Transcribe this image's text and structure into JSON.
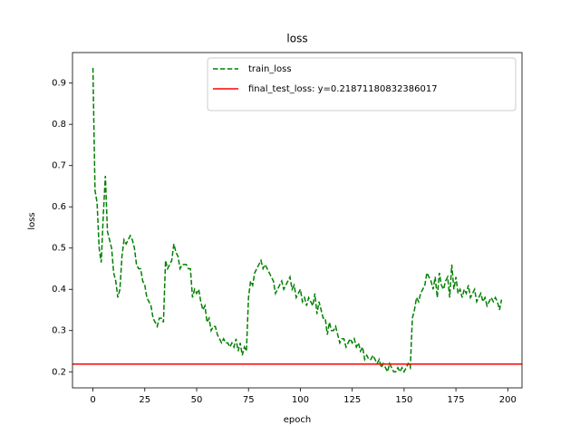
{
  "chart_data": {
    "type": "line",
    "title": "loss",
    "x_label": "epoch",
    "y_label": "loss",
    "x": [
      0,
      1,
      2,
      3,
      4,
      5,
      6,
      7,
      8,
      9,
      10,
      11,
      12,
      13,
      14,
      15,
      16,
      17,
      18,
      19,
      20,
      21,
      22,
      23,
      24,
      25,
      26,
      27,
      28,
      29,
      30,
      31,
      32,
      33,
      34,
      35,
      36,
      37,
      38,
      39,
      40,
      41,
      42,
      43,
      44,
      45,
      46,
      47,
      48,
      49,
      50,
      51,
      52,
      53,
      54,
      55,
      56,
      57,
      58,
      59,
      60,
      61,
      62,
      63,
      64,
      65,
      66,
      67,
      68,
      69,
      70,
      71,
      72,
      73,
      74,
      75,
      76,
      77,
      78,
      79,
      80,
      81,
      82,
      83,
      84,
      85,
      86,
      87,
      88,
      89,
      90,
      91,
      92,
      93,
      94,
      95,
      96,
      97,
      98,
      99,
      100,
      101,
      102,
      103,
      104,
      105,
      106,
      107,
      108,
      109,
      110,
      111,
      112,
      113,
      114,
      115,
      116,
      117,
      118,
      119,
      120,
      121,
      122,
      123,
      124,
      125,
      126,
      127,
      128,
      129,
      130,
      131,
      132,
      133,
      134,
      135,
      136,
      137,
      138,
      139,
      140,
      141,
      142,
      143,
      144,
      145,
      146,
      147,
      148,
      149,
      150,
      151,
      152,
      153,
      154,
      155,
      156,
      157,
      158,
      159,
      160,
      161,
      162,
      163,
      164,
      165,
      166,
      167,
      168,
      169,
      170,
      171,
      172,
      173,
      174,
      175,
      176,
      177,
      178,
      179,
      180,
      181,
      182,
      183,
      184,
      185,
      186,
      187,
      188,
      189,
      190,
      191,
      192,
      193,
      194,
      195,
      196,
      197
    ],
    "series": [
      {
        "name": "train_loss",
        "color": "#008000",
        "dash": true,
        "values": [
          0.937,
          0.64,
          0.61,
          0.5,
          0.465,
          0.58,
          0.675,
          0.54,
          0.52,
          0.5,
          0.44,
          0.42,
          0.38,
          0.4,
          0.48,
          0.52,
          0.51,
          0.52,
          0.53,
          0.52,
          0.5,
          0.46,
          0.45,
          0.45,
          0.42,
          0.41,
          0.38,
          0.37,
          0.36,
          0.33,
          0.32,
          0.31,
          0.33,
          0.33,
          0.32,
          0.47,
          0.45,
          0.46,
          0.47,
          0.51,
          0.49,
          0.48,
          0.45,
          0.46,
          0.46,
          0.46,
          0.45,
          0.45,
          0.38,
          0.4,
          0.39,
          0.4,
          0.37,
          0.35,
          0.36,
          0.32,
          0.33,
          0.3,
          0.31,
          0.31,
          0.29,
          0.28,
          0.27,
          0.28,
          0.27,
          0.27,
          0.26,
          0.27,
          0.26,
          0.28,
          0.25,
          0.27,
          0.24,
          0.26,
          0.25,
          0.38,
          0.42,
          0.41,
          0.44,
          0.45,
          0.46,
          0.47,
          0.45,
          0.46,
          0.45,
          0.44,
          0.43,
          0.42,
          0.39,
          0.4,
          0.41,
          0.42,
          0.4,
          0.41,
          0.42,
          0.43,
          0.4,
          0.41,
          0.38,
          0.39,
          0.4,
          0.37,
          0.38,
          0.36,
          0.38,
          0.37,
          0.36,
          0.39,
          0.34,
          0.37,
          0.35,
          0.33,
          0.33,
          0.29,
          0.32,
          0.3,
          0.3,
          0.31,
          0.29,
          0.27,
          0.28,
          0.28,
          0.26,
          0.27,
          0.28,
          0.27,
          0.28,
          0.26,
          0.27,
          0.25,
          0.26,
          0.23,
          0.24,
          0.23,
          0.23,
          0.24,
          0.23,
          0.22,
          0.23,
          0.21,
          0.22,
          0.21,
          0.2,
          0.22,
          0.21,
          0.2,
          0.2,
          0.21,
          0.2,
          0.21,
          0.2,
          0.21,
          0.22,
          0.21,
          0.33,
          0.35,
          0.38,
          0.37,
          0.39,
          0.4,
          0.41,
          0.44,
          0.43,
          0.42,
          0.4,
          0.43,
          0.38,
          0.44,
          0.41,
          0.4,
          0.42,
          0.43,
          0.38,
          0.46,
          0.4,
          0.43,
          0.39,
          0.4,
          0.38,
          0.4,
          0.39,
          0.41,
          0.38,
          0.39,
          0.4,
          0.37,
          0.38,
          0.39,
          0.37,
          0.38,
          0.36,
          0.37,
          0.38,
          0.37,
          0.38,
          0.37,
          0.35,
          0.375
        ]
      },
      {
        "name": "final_test_loss: y=0.21871180832386017",
        "color": "#ff0000",
        "dash": false,
        "y": 0.21871180832386017
      }
    ],
    "xlim": [
      -9.85,
      206.85
    ],
    "ylim": [
      0.161,
      0.974
    ],
    "xticks": [
      0,
      25,
      50,
      75,
      100,
      125,
      150,
      175,
      200
    ],
    "yticks": [
      0.2,
      0.3,
      0.4,
      0.5,
      0.6,
      0.7,
      0.8,
      0.9
    ],
    "legend": "upper right"
  }
}
